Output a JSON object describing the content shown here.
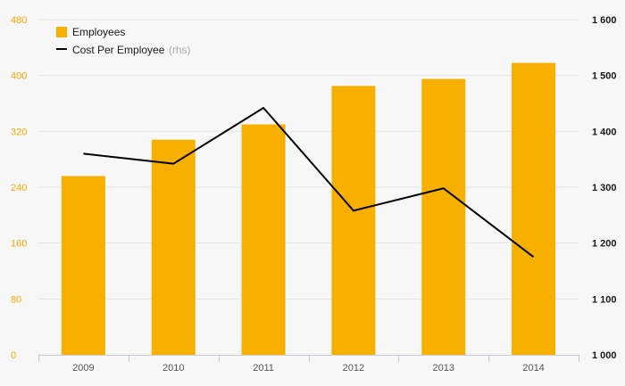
{
  "chart_data": {
    "type": "bar",
    "categories": [
      "2009",
      "2010",
      "2011",
      "2012",
      "2013",
      "2014"
    ],
    "series": [
      {
        "name": "Employees",
        "type": "bar",
        "axis": "left",
        "color": "#f7b000",
        "values": [
          256,
          308,
          330,
          385,
          395,
          418
        ]
      },
      {
        "name": "Cost Per Employee",
        "name_suffix": "(rhs)",
        "type": "line",
        "axis": "right",
        "color": "#000000",
        "values": [
          1360,
          1342,
          1442,
          1258,
          1298,
          1175
        ]
      }
    ],
    "y_left": {
      "min": 0,
      "max": 480,
      "ticks": [
        "0",
        "80",
        "160",
        "240",
        "320",
        "400",
        "480"
      ],
      "color": "#f7a800"
    },
    "y_right": {
      "min": 1000,
      "max": 1600,
      "ticks": [
        "1 000",
        "1 100",
        "1 200",
        "1 300",
        "1 400",
        "1 500",
        "1 600"
      ]
    },
    "grid": true,
    "legend_position": "top-left"
  }
}
